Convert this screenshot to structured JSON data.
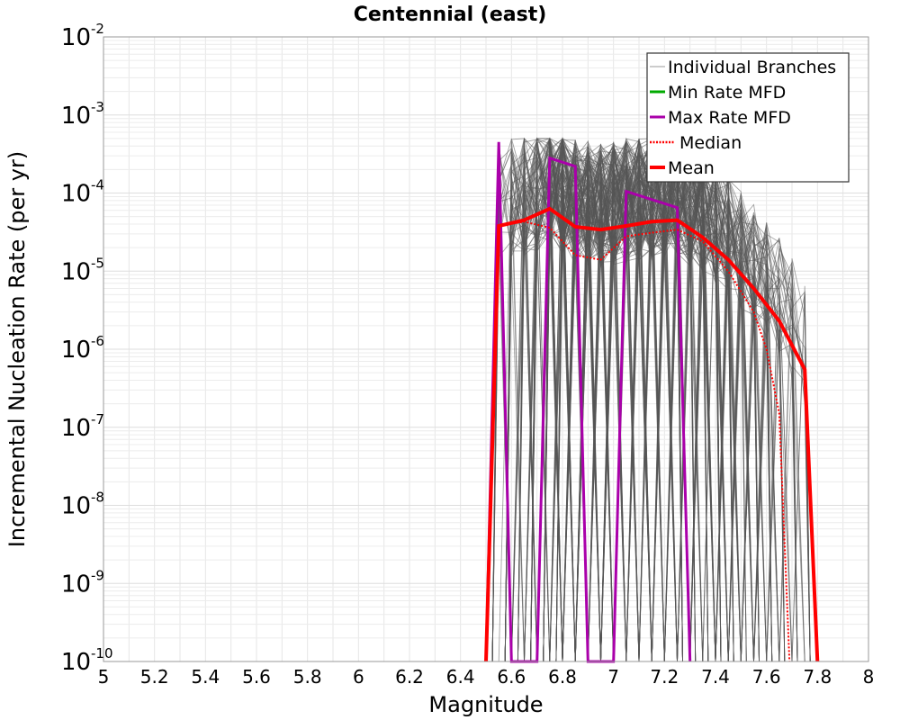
{
  "chart_data": {
    "type": "line",
    "title": "Centennial (east)",
    "xlabel": "Magnitude",
    "ylabel": "Incremental Nucleation Rate (per yr)",
    "xlim": [
      5,
      8
    ],
    "ylim": [
      1e-10,
      0.01
    ],
    "yscale": "log",
    "grid": true,
    "legend_position": "top-right",
    "x_ticks": [
      "5",
      "5.2",
      "5.4",
      "5.6",
      "5.8",
      "6",
      "6.2",
      "6.4",
      "6.6",
      "6.8",
      "7",
      "7.2",
      "7.4",
      "7.6",
      "7.8",
      "8"
    ],
    "y_ticks": [
      {
        "base": "10",
        "exp": "-2",
        "value": 0.01
      },
      {
        "base": "10",
        "exp": "-3",
        "value": 0.001
      },
      {
        "base": "10",
        "exp": "-4",
        "value": 0.0001
      },
      {
        "base": "10",
        "exp": "-5",
        "value": 1e-05
      },
      {
        "base": "10",
        "exp": "-6",
        "value": 1e-06
      },
      {
        "base": "10",
        "exp": "-7",
        "value": 1e-07
      },
      {
        "base": "10",
        "exp": "-8",
        "value": 1e-08
      },
      {
        "base": "10",
        "exp": "-9",
        "value": 1e-09
      },
      {
        "base": "10",
        "exp": "-10",
        "value": 1e-10
      }
    ],
    "branch_style": {
      "color": "#555555",
      "count_drawn": 160
    },
    "series": [
      {
        "name": "Individual Branches",
        "color": "#999999",
        "style": "thin",
        "x": [],
        "y": []
      },
      {
        "name": "Min Rate MFD",
        "color": "#00aa00",
        "style": "solid",
        "x": [],
        "y": []
      },
      {
        "name": "Max Rate MFD",
        "color": "#aa00aa",
        "style": "solid",
        "x": [
          6.5,
          6.55,
          6.6,
          6.7,
          6.75,
          6.85,
          6.9,
          7.0,
          7.05,
          7.25,
          7.3
        ],
        "y": [
          1e-10,
          0.00045,
          1e-10,
          1e-10,
          0.00028,
          0.00022,
          1e-10,
          1e-10,
          0.000105,
          6.5e-05,
          1e-10
        ]
      },
      {
        "name": "Median",
        "color": "#ff0000",
        "style": "dotted",
        "x": [
          6.5,
          6.55,
          6.65,
          6.75,
          6.85,
          6.95,
          7.05,
          7.15,
          7.25,
          7.35,
          7.45,
          7.55,
          7.6,
          7.65,
          7.69
        ],
        "y": [
          1e-10,
          3.8e-05,
          4.3e-05,
          3.6e-05,
          1.6e-05,
          1.4e-05,
          2.8e-05,
          3.1e-05,
          3.4e-05,
          2.4e-05,
          1e-05,
          3e-06,
          1e-06,
          1.5e-07,
          1e-10
        ]
      },
      {
        "name": "Mean",
        "color": "#ff0000",
        "style": "thick",
        "x": [
          6.5,
          6.55,
          6.65,
          6.75,
          6.85,
          6.95,
          7.05,
          7.15,
          7.25,
          7.35,
          7.45,
          7.55,
          7.65,
          7.75,
          7.8
        ],
        "y": [
          1e-10,
          3.8e-05,
          4.5e-05,
          6.3e-05,
          3.7e-05,
          3.4e-05,
          3.8e-05,
          4.3e-05,
          4.5e-05,
          2.7e-05,
          1.4e-05,
          6e-06,
          2.3e-06,
          5.5e-07,
          1e-10
        ]
      }
    ]
  }
}
